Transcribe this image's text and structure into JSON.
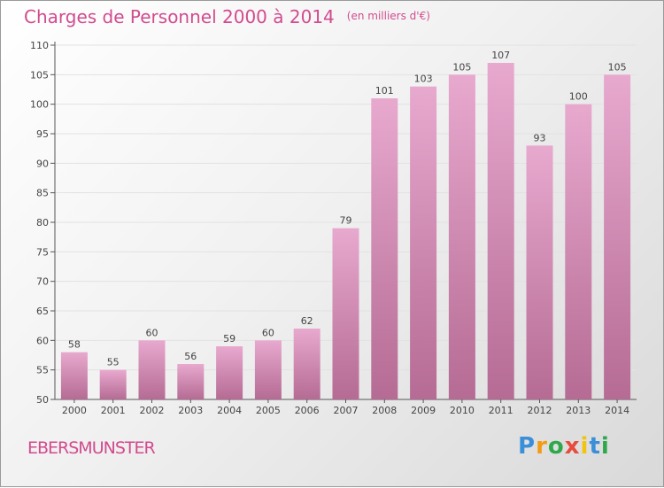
{
  "header": {
    "title": "Charges de Personnel 2000 à 2014",
    "subtitle": "(en milliers d'€)"
  },
  "footer": {
    "commune": "EBERSMUNSTER",
    "logo_letters": [
      "P",
      "r",
      "o",
      "x",
      "i",
      "t",
      "i"
    ],
    "logo_colors": [
      "#3b8fd9",
      "#f39c12",
      "#2ea84a",
      "#e74c3c",
      "#f1c40f",
      "#3b8fd9",
      "#2ea84a"
    ]
  },
  "colors": {
    "bar_top": "#e8a9cf",
    "bar_bottom": "#b56b94",
    "title": "#d24b8e",
    "grid": "#e2e2e2"
  },
  "chart_data": {
    "type": "bar",
    "categories": [
      "2000",
      "2001",
      "2002",
      "2003",
      "2004",
      "2005",
      "2006",
      "2007",
      "2008",
      "2009",
      "2010",
      "2011",
      "2012",
      "2013",
      "2014"
    ],
    "values": [
      58,
      55,
      60,
      56,
      59,
      60,
      62,
      79,
      101,
      103,
      105,
      107,
      93,
      100,
      105
    ],
    "yticks": [
      50,
      55,
      60,
      65,
      70,
      75,
      80,
      85,
      90,
      95,
      100,
      105,
      110
    ],
    "ylim": [
      50,
      110
    ],
    "grid": true
  }
}
